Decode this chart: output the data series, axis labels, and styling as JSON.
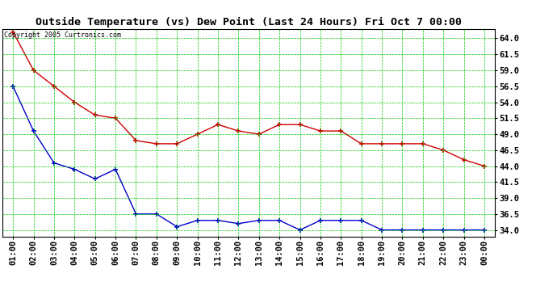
{
  "title": "Outside Temperature (vs) Dew Point (Last 24 Hours) Fri Oct 7 00:00",
  "copyright": "Copyright 2005 Curtronics.com",
  "x_labels": [
    "01:00",
    "02:00",
    "03:00",
    "04:00",
    "05:00",
    "06:00",
    "07:00",
    "08:00",
    "09:00",
    "10:00",
    "11:00",
    "12:00",
    "13:00",
    "14:00",
    "15:00",
    "16:00",
    "17:00",
    "18:00",
    "19:00",
    "20:00",
    "21:00",
    "22:00",
    "23:00",
    "00:00"
  ],
  "temp_red": [
    65.0,
    59.0,
    56.5,
    54.0,
    52.0,
    51.5,
    48.0,
    47.5,
    47.5,
    49.0,
    50.5,
    49.5,
    49.0,
    50.5,
    50.5,
    49.5,
    49.5,
    47.5,
    47.5,
    47.5,
    47.5,
    46.5,
    45.0,
    44.0
  ],
  "dew_blue": [
    56.5,
    49.5,
    44.5,
    43.5,
    42.0,
    43.5,
    36.5,
    36.5,
    34.5,
    35.5,
    35.5,
    35.0,
    35.5,
    35.5,
    34.0,
    35.5,
    35.5,
    35.5,
    34.0,
    34.0,
    34.0,
    34.0,
    34.0,
    34.0
  ],
  "ylim_min": 33.0,
  "ylim_max": 65.5,
  "yticks": [
    34.0,
    36.5,
    39.0,
    41.5,
    44.0,
    46.5,
    49.0,
    51.5,
    54.0,
    56.5,
    59.0,
    61.5,
    64.0
  ],
  "bg_color": "#ffffff",
  "grid_color": "#00cc00",
  "red_color": "#cc0000",
  "blue_color": "#0000cc",
  "title_fontsize": 9.5,
  "axis_fontsize": 7.5,
  "copyright_fontsize": 6.0,
  "marker_size": 4,
  "linewidth": 1.0
}
